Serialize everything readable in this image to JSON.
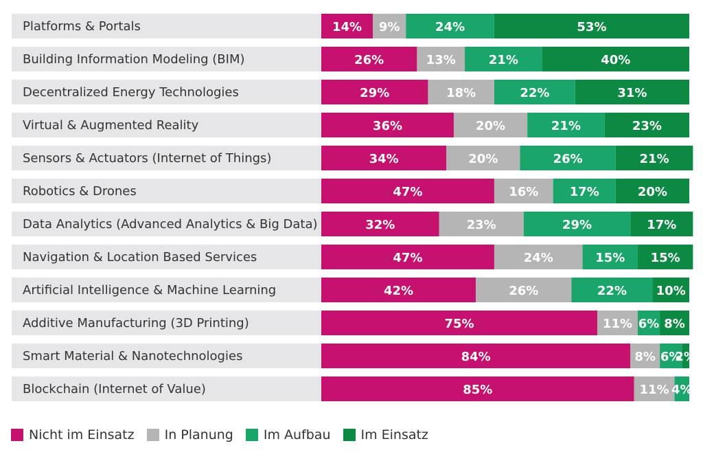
{
  "chart_data": {
    "type": "bar",
    "orientation": "horizontal",
    "stacked": true,
    "percent": true,
    "xlim": [
      0,
      100
    ],
    "categories": [
      "Platforms & Portals",
      "Building Information Modeling (BIM)",
      "Decentralized Energy Technologies",
      "Virtual & Augmented Reality",
      "Sensors & Actuators (Internet of Things)",
      "Robotics & Drones",
      "Data Analytics (Advanced Analytics & Big Data)",
      "Navigation & Location Based Services",
      "Artificial Intelligence & Machine Learning",
      "Additive Manufacturing (3D Printing)",
      "Smart Material & Nanotechnologies",
      "Blockchain (Internet of Value)"
    ],
    "series": [
      {
        "name": "Nicht im Einsatz",
        "color": "#c4126e",
        "values": [
          14,
          26,
          29,
          36,
          34,
          47,
          32,
          47,
          42,
          75,
          84,
          85
        ]
      },
      {
        "name": "In Planung",
        "color": "#b5b5b5",
        "values": [
          9,
          13,
          18,
          20,
          20,
          16,
          23,
          24,
          26,
          11,
          8,
          11
        ]
      },
      {
        "name": "Im Aufbau",
        "color": "#1aa66a",
        "values": [
          24,
          21,
          22,
          21,
          26,
          17,
          29,
          15,
          22,
          6,
          6,
          4
        ]
      },
      {
        "name": "Im Einsatz",
        "color": "#0c8a43",
        "values": [
          53,
          40,
          31,
          23,
          21,
          20,
          17,
          15,
          10,
          8,
          2,
          0
        ]
      }
    ],
    "legend_position": "bottom-left",
    "row_background": "#e6e6e8"
  }
}
